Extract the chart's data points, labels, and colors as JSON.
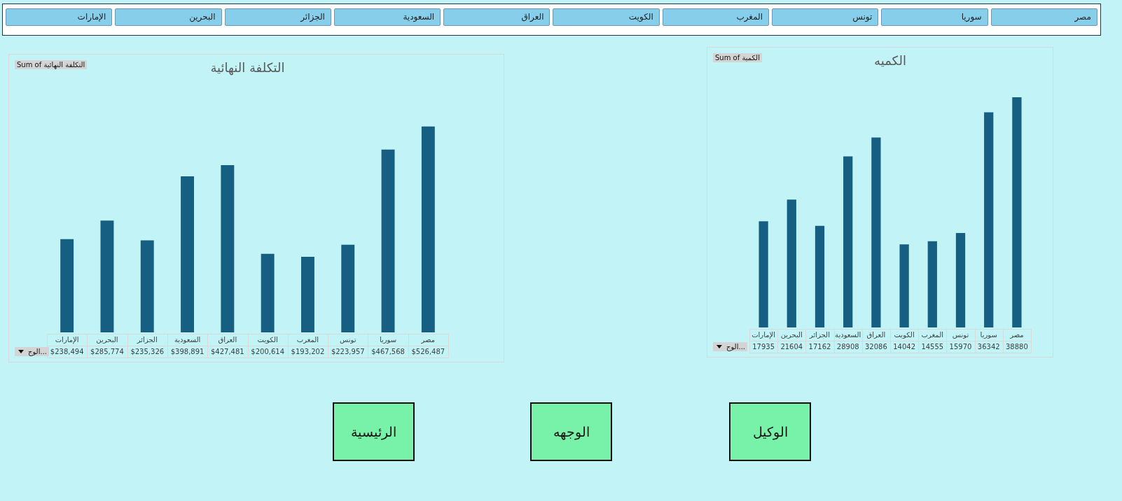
{
  "chart_data": [
    {
      "type": "other",
      "annotations": [
        "الإمارات",
        "البحرين",
        "الجزائر",
        "السعودية",
        "العراق",
        "الكويت",
        "المغرب",
        "تونس",
        "سوريا",
        "مصر"
      ]
    },
    {
      "type": "bar",
      "title": "التكلفة النهائية",
      "subtitle": "Sum of التكلفة النهائية",
      "xlabel": "الوج...",
      "categories": [
        "الإمارات",
        "البحرين",
        "الجزائر",
        "السعودية",
        "العراق",
        "الكويت",
        "المغرب",
        "تونس",
        "سوريا",
        "مصر"
      ],
      "values": [
        238494,
        285774,
        235326,
        398891,
        427481,
        200614,
        193202,
        223957,
        467568,
        526487
      ],
      "color": "#175e83",
      "data_labels": true,
      "value_labels": [
        "$238,494",
        "$285,774",
        "$235,326",
        "$398,891",
        "$427,481",
        "$200,614",
        "$193,202",
        "$223,957",
        "$467,568",
        "$526,487"
      ]
    },
    {
      "type": "bar",
      "title": "الكميه",
      "subtitle": "Sum of الكمية",
      "xlabel": "الوج...",
      "categories": [
        "الإمارات",
        "البحرين",
        "الجزائر",
        "السعودية",
        "العراق",
        "الكويت",
        "المغرب",
        "تونس",
        "سوريا",
        "مصر"
      ],
      "values": [
        17935,
        21604,
        17162,
        28908,
        32086,
        14042,
        14555,
        15970,
        36342,
        38880
      ],
      "color": "#175e83",
      "data_labels": true
    },
    {
      "type": "other",
      "annotations": [
        "الرئيسية",
        "الوجهه",
        "الوكيل"
      ]
    }
  ]
}
